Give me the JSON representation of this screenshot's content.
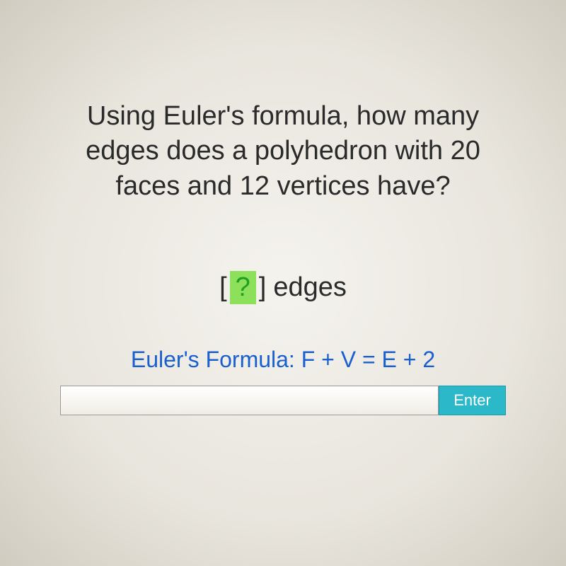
{
  "question": {
    "line1": "Using Euler's formula, how many",
    "line2": "edges does a polyhedron with 20",
    "line3": "faces and 12 vertices have?"
  },
  "answer": {
    "placeholder_symbol": "?",
    "bracket_left": "[",
    "bracket_right": "]",
    "unit_label": "edges"
  },
  "formula": {
    "text": "Euler's Formula:  F + V = E + 2"
  },
  "input": {
    "value": "",
    "enter_label": "Enter"
  },
  "colors": {
    "text": "#2a2a2a",
    "highlight_bg": "#8de05a",
    "highlight_fg": "#20a020",
    "formula": "#1a5fd0",
    "button_bg": "#2bb8c9",
    "button_fg": "#ffffff"
  }
}
